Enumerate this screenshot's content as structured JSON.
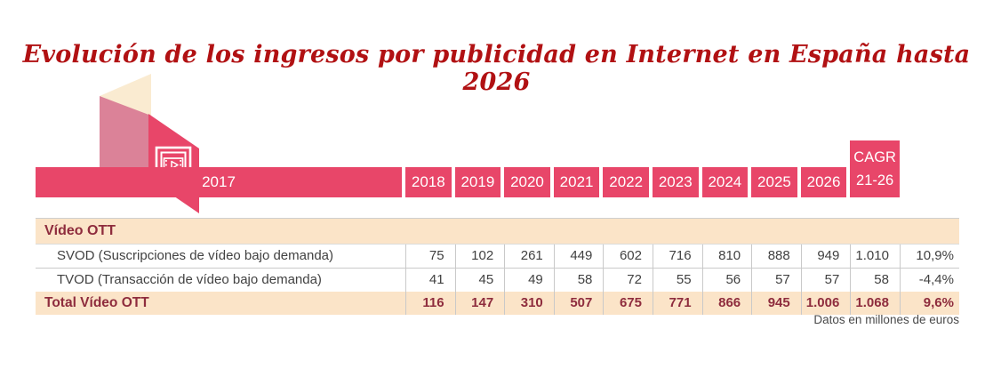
{
  "title": "Evolución de los ingresos por publicidad en Internet en España hasta 2026",
  "footnote": "Datos en millones de euros",
  "colors": {
    "accent_pink": "#E84669",
    "logo_light_pink": "#DB8298",
    "logo_cream": "#FAEBD1",
    "row_peach": "#FBE4C8",
    "maroon_text": "#8E2C3D",
    "title_red": "#B11113",
    "data_text": "#414141",
    "footnote_gray": "#4A4A4A"
  },
  "logo": {
    "icon": "video-film-play-icon"
  },
  "table": {
    "year_headers": [
      "2017",
      "2018",
      "2019",
      "2020",
      "2021",
      "2022",
      "2023",
      "2024",
      "2025",
      "2026"
    ],
    "cagr_header": {
      "line1": "CAGR",
      "line2": "21-26"
    },
    "section_header": "Vídeo OTT",
    "rows": [
      {
        "label": "SVOD (Suscripciones de vídeo bajo demanda)",
        "values": [
          "75",
          "102",
          "261",
          "449",
          "602",
          "716",
          "810",
          "888",
          "949",
          "1.010",
          "10,9%"
        ]
      },
      {
        "label": "TVOD (Transacción de vídeo bajo demanda)",
        "values": [
          "41",
          "45",
          "49",
          "58",
          "72",
          "55",
          "56",
          "57",
          "57",
          "58",
          "-4,4%"
        ]
      }
    ],
    "total_row": {
      "label": "Total Vídeo OTT",
      "values": [
        "116",
        "147",
        "310",
        "507",
        "675",
        "771",
        "866",
        "945",
        "1.006",
        "1.068",
        "9,6%"
      ]
    }
  },
  "chart_data": {
    "type": "table",
    "title": "Evolución de los ingresos por publicidad en Internet en España hasta 2026",
    "categories": [
      2017,
      2018,
      2019,
      2020,
      2021,
      2022,
      2023,
      2024,
      2025,
      2026
    ],
    "section": "Vídeo OTT",
    "series": [
      {
        "name": "SVOD (Suscripciones de vídeo bajo demanda)",
        "values": [
          75,
          102,
          261,
          449,
          602,
          716,
          810,
          888,
          949,
          1010
        ],
        "cagr_21_26": "10,9%"
      },
      {
        "name": "TVOD (Transacción de vídeo bajo demanda)",
        "values": [
          41,
          45,
          49,
          58,
          72,
          55,
          56,
          57,
          57,
          58
        ],
        "cagr_21_26": "-4,4%"
      },
      {
        "name": "Total Vídeo OTT",
        "values": [
          116,
          147,
          310,
          507,
          675,
          771,
          866,
          945,
          1006,
          1068
        ],
        "cagr_21_26": "9,6%"
      }
    ],
    "units": "millones de euros"
  }
}
